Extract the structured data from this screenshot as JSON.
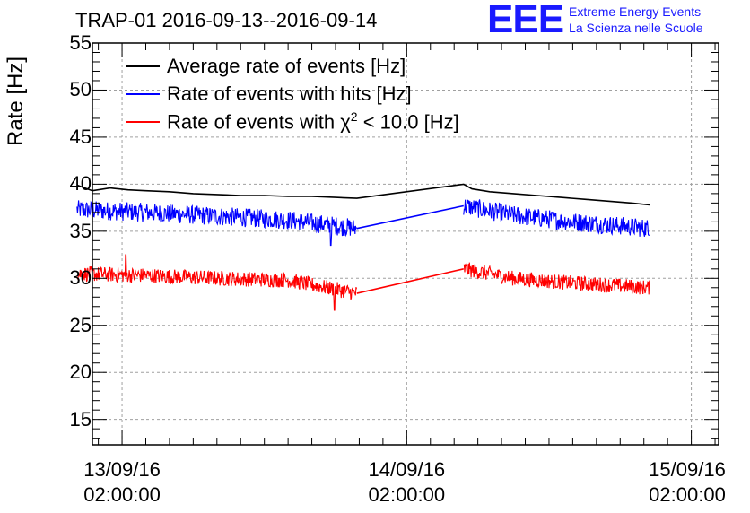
{
  "header": {
    "title": "TRAP-01 2016-09-13--2016-09-14",
    "logo_mark": "EEE",
    "logo_line1": "Extreme Energy Events",
    "logo_line2": "La Scienza nelle Scuole"
  },
  "colors": {
    "average": "#000000",
    "hits": "#0000ff",
    "chi2": "#ff0000",
    "logo": "#1a1aff"
  },
  "legend": {
    "average": "Average rate of events [Hz]",
    "hits": "Rate of events with hits [Hz]",
    "chi2_prefix": "Rate of events with ",
    "chi2_symbol": "χ",
    "chi2_sup": "2",
    "chi2_suffix": " < 10.0 [Hz]"
  },
  "chart_data": {
    "type": "line",
    "title": "TRAP-01 2016-09-13--2016-09-14",
    "ylabel": "Rate [Hz]",
    "xlabel": "",
    "ylim": [
      12.3,
      55
    ],
    "x_unit": "hours since 2016-09-13 02:00:00",
    "xlim": [
      -2.5,
      50.3
    ],
    "yticks": [
      "15",
      "20",
      "25",
      "30",
      "35",
      "40",
      "45",
      "50",
      "55"
    ],
    "xticks": [
      {
        "at": 0,
        "date": "13/09/16",
        "time": "02:00:00"
      },
      {
        "at": 24,
        "date": "14/09/16",
        "time": "02:00:00"
      },
      {
        "at": 48,
        "date": "15/09/16",
        "time": "02:00:00"
      }
    ],
    "grid": true,
    "gap": [
      19.8,
      28.8
    ],
    "series": [
      {
        "name": "Average rate of events [Hz]",
        "key": "average",
        "x": [
          -3.8,
          -2.5,
          -1.0,
          0.5,
          2,
          4,
          6,
          8,
          10,
          12,
          14,
          16,
          18,
          19.8,
          28.8,
          29.5,
          31,
          33,
          35,
          37,
          39,
          41,
          43,
          44.5
        ],
        "y": [
          39.9,
          39.3,
          39.6,
          39.4,
          39.3,
          39.2,
          39.0,
          38.9,
          38.8,
          38.8,
          38.7,
          38.7,
          38.6,
          38.5,
          40.0,
          39.5,
          39.2,
          39.0,
          38.8,
          38.6,
          38.4,
          38.2,
          38.0,
          37.8
        ]
      },
      {
        "name": "Rate of events with hits [Hz]",
        "key": "hits",
        "start": -3.8,
        "end": 44.5,
        "x": [
          -3.8,
          2,
          8,
          14,
          19.8,
          28.8,
          33,
          38,
          44.5
        ],
        "y": [
          37.3,
          37.0,
          36.6,
          36.2,
          35.3,
          37.7,
          36.7,
          36.0,
          35.3
        ],
        "noise": 1.0,
        "dips": [
          [
            17.6,
            33.5
          ],
          [
            44.4,
            34.6
          ]
        ]
      },
      {
        "name": "Rate of events with χ2 < 10.0 [Hz]",
        "key": "chi2",
        "start": -3.8,
        "end": 44.5,
        "x": [
          -3.8,
          2,
          8,
          14,
          19.8,
          28.8,
          33,
          38,
          44.5
        ],
        "y": [
          30.5,
          30.3,
          30.0,
          29.8,
          28.4,
          31.0,
          30.0,
          29.5,
          29.0
        ],
        "noise": 0.8,
        "dips": [
          [
            17.9,
            26.6
          ],
          [
            0.3,
            32.5
          ]
        ]
      }
    ]
  }
}
